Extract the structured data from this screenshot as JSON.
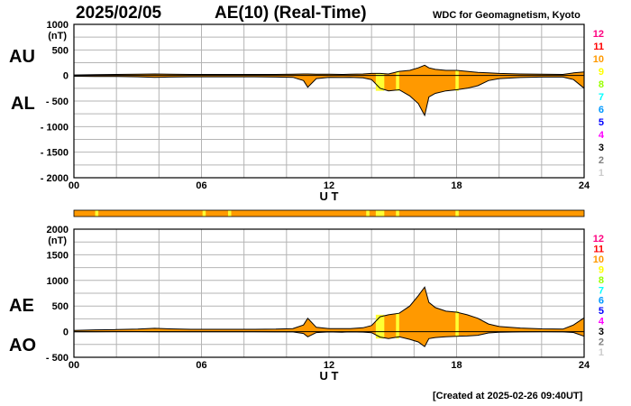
{
  "header": {
    "date": "2025/02/05",
    "title": "AE(10) (Real-Time)",
    "source": "WDC for Geomagnetism, Kyoto"
  },
  "footer": {
    "created": "[Created at 2025-02-26 09:40UT]"
  },
  "colors": {
    "fill": "#ff9900",
    "grid": "#b4b4b4",
    "highlight": "#ffff33",
    "bar_text": "#000000"
  },
  "station_count_scale": [
    {
      "label": "12",
      "color": "#ff0080"
    },
    {
      "label": "11",
      "color": "#ff0000"
    },
    {
      "label": "10",
      "color": "#ff9900"
    },
    {
      "label": "9",
      "color": "#ffff00"
    },
    {
      "label": "8",
      "color": "#99ff00"
    },
    {
      "label": "7",
      "color": "#00ffff"
    },
    {
      "label": "6",
      "color": "#0099ff"
    },
    {
      "label": "5",
      "color": "#0000ff"
    },
    {
      "label": "4",
      "color": "#ff00ff"
    },
    {
      "label": "3",
      "color": "#000000"
    },
    {
      "label": "2",
      "color": "#808080"
    },
    {
      "label": "1",
      "color": "#cccccc"
    }
  ],
  "station_bar": {
    "base_color": "#ff9900",
    "segments": [
      {
        "from": 1.0,
        "to": 1.15,
        "color": "#ffff33"
      },
      {
        "from": 6.05,
        "to": 6.2,
        "color": "#ffff33"
      },
      {
        "from": 7.25,
        "to": 7.4,
        "color": "#ffff33"
      },
      {
        "from": 13.75,
        "to": 13.9,
        "color": "#ffff33"
      },
      {
        "from": 14.2,
        "to": 14.6,
        "color": "#ffff33"
      },
      {
        "from": 15.15,
        "to": 15.3,
        "color": "#ffff33"
      },
      {
        "from": 17.95,
        "to": 18.1,
        "color": "#ffff33"
      }
    ]
  },
  "chart_data": [
    {
      "type": "area",
      "panel": "AU/AL",
      "labels": {
        "upper": "AU",
        "lower": "AL"
      },
      "unit": "(nT)",
      "xlabel": "U T",
      "xlim": [
        0,
        24
      ],
      "xticks": [
        "00",
        "06",
        "12",
        "18",
        "24"
      ],
      "ylim": [
        -2000,
        1000
      ],
      "yticks": [
        "1000",
        "500",
        "0",
        "- 500",
        "- 1000",
        "- 1500",
        "- 2000"
      ],
      "grid": true,
      "x": [
        0,
        1,
        2,
        3,
        3.8,
        4.5,
        5.5,
        6.5,
        7.5,
        8.5,
        9.5,
        10.3,
        10.8,
        11.0,
        11.4,
        12.0,
        12.6,
        13.0,
        13.6,
        14.0,
        14.4,
        14.8,
        15.3,
        15.8,
        16.2,
        16.5,
        16.7,
        17.0,
        17.5,
        18.0,
        18.5,
        19.0,
        19.5,
        20.0,
        21.0,
        22.0,
        23.0,
        23.5,
        24.0
      ],
      "series": [
        {
          "name": "AU",
          "values": [
            10,
            15,
            20,
            25,
            30,
            25,
            20,
            20,
            20,
            20,
            20,
            25,
            30,
            30,
            25,
            25,
            20,
            25,
            30,
            40,
            40,
            30,
            80,
            100,
            150,
            200,
            150,
            120,
            100,
            100,
            80,
            60,
            50,
            40,
            30,
            25,
            20,
            50,
            70
          ]
        },
        {
          "name": "AL",
          "values": [
            -15,
            -20,
            -20,
            -25,
            -35,
            -30,
            -25,
            -25,
            -25,
            -25,
            -30,
            -35,
            -100,
            -230,
            -60,
            -35,
            -40,
            -35,
            -45,
            -80,
            -250,
            -300,
            -280,
            -400,
            -550,
            -780,
            -420,
            -350,
            -300,
            -280,
            -250,
            -200,
            -100,
            -60,
            -40,
            -30,
            -30,
            -80,
            -250
          ]
        }
      ],
      "highlights": [
        {
          "from": 14.2,
          "to": 14.6
        },
        {
          "from": 15.15,
          "to": 15.3
        },
        {
          "from": 17.95,
          "to": 18.1
        }
      ]
    },
    {
      "type": "area",
      "panel": "AE/AO",
      "labels": {
        "upper": "AE",
        "lower": "AO"
      },
      "unit": "(nT)",
      "xlabel": "U T",
      "xlim": [
        0,
        24
      ],
      "xticks": [
        "00",
        "06",
        "12",
        "18",
        "24"
      ],
      "ylim": [
        -500,
        2000
      ],
      "yticks": [
        "2000",
        "1500",
        "1000",
        "500",
        "0",
        "- 500"
      ],
      "grid": true,
      "x": [
        0,
        1,
        2,
        3,
        3.8,
        4.5,
        5.5,
        6.5,
        7.5,
        8.5,
        9.5,
        10.3,
        10.8,
        11.0,
        11.4,
        12.0,
        12.6,
        13.0,
        13.6,
        14.0,
        14.4,
        14.8,
        15.3,
        15.8,
        16.2,
        16.5,
        16.7,
        17.0,
        17.5,
        18.0,
        18.5,
        19.0,
        19.5,
        20.0,
        21.0,
        22.0,
        23.0,
        23.5,
        24.0
      ],
      "series": [
        {
          "name": "AE",
          "values": [
            25,
            35,
            40,
            50,
            65,
            55,
            45,
            45,
            45,
            45,
            50,
            60,
            130,
            260,
            85,
            60,
            60,
            60,
            75,
            120,
            290,
            330,
            360,
            500,
            700,
            870,
            570,
            470,
            400,
            380,
            330,
            260,
            150,
            100,
            70,
            55,
            50,
            130,
            270
          ]
        },
        {
          "name": "AO",
          "values": [
            -3,
            -3,
            0,
            0,
            -3,
            -3,
            -3,
            -3,
            -3,
            -3,
            -5,
            -5,
            -35,
            -100,
            -18,
            -5,
            -10,
            -5,
            -8,
            -20,
            -105,
            -135,
            -100,
            -150,
            -200,
            -290,
            -135,
            -115,
            -100,
            -90,
            -85,
            -70,
            -25,
            -10,
            -5,
            -3,
            -5,
            -15,
            -90
          ]
        }
      ],
      "highlights": [
        {
          "from": 14.2,
          "to": 14.6
        },
        {
          "from": 15.15,
          "to": 15.3
        },
        {
          "from": 17.95,
          "to": 18.1
        }
      ]
    }
  ]
}
